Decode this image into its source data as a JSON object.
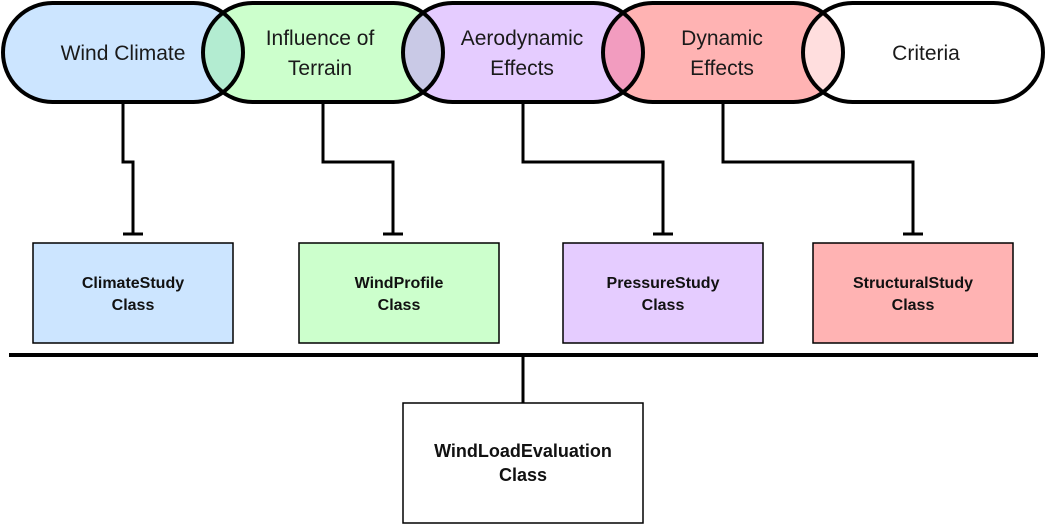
{
  "colors": {
    "wind_climate": "#cce5ff",
    "terrain": "#ccffcc",
    "aerodynamic": "#e5ccff",
    "dynamic": "#ffb3b3",
    "criteria": "#ffffff",
    "overlap_climate_terrain": "#b3ecd1",
    "overlap_terrain_aero": "#c9c9e6",
    "overlap_aero_dynamic": "#f29cbf",
    "overlap_dynamic_criteria": "#ffdede",
    "stroke": "#000000"
  },
  "pills": {
    "wind_climate": {
      "line1": "Wind Climate"
    },
    "terrain": {
      "line1": "Influence of",
      "line2": "Terrain"
    },
    "aerodynamic": {
      "line1": "Aerodynamic",
      "line2": "Effects"
    },
    "dynamic": {
      "line1": "Dynamic",
      "line2": "Effects"
    },
    "criteria": {
      "line1": "Criteria"
    }
  },
  "classes": {
    "climate": {
      "line1": "ClimateStudy",
      "line2": "Class"
    },
    "wind_profile": {
      "line1": "WindProfile",
      "line2": "Class"
    },
    "pressure": {
      "line1": "PressureStudy",
      "line2": "Class"
    },
    "structural": {
      "line1": "StructuralStudy",
      "line2": "Class"
    },
    "wind_load": {
      "line1": "WindLoadEvaluation",
      "line2": "Class"
    }
  }
}
